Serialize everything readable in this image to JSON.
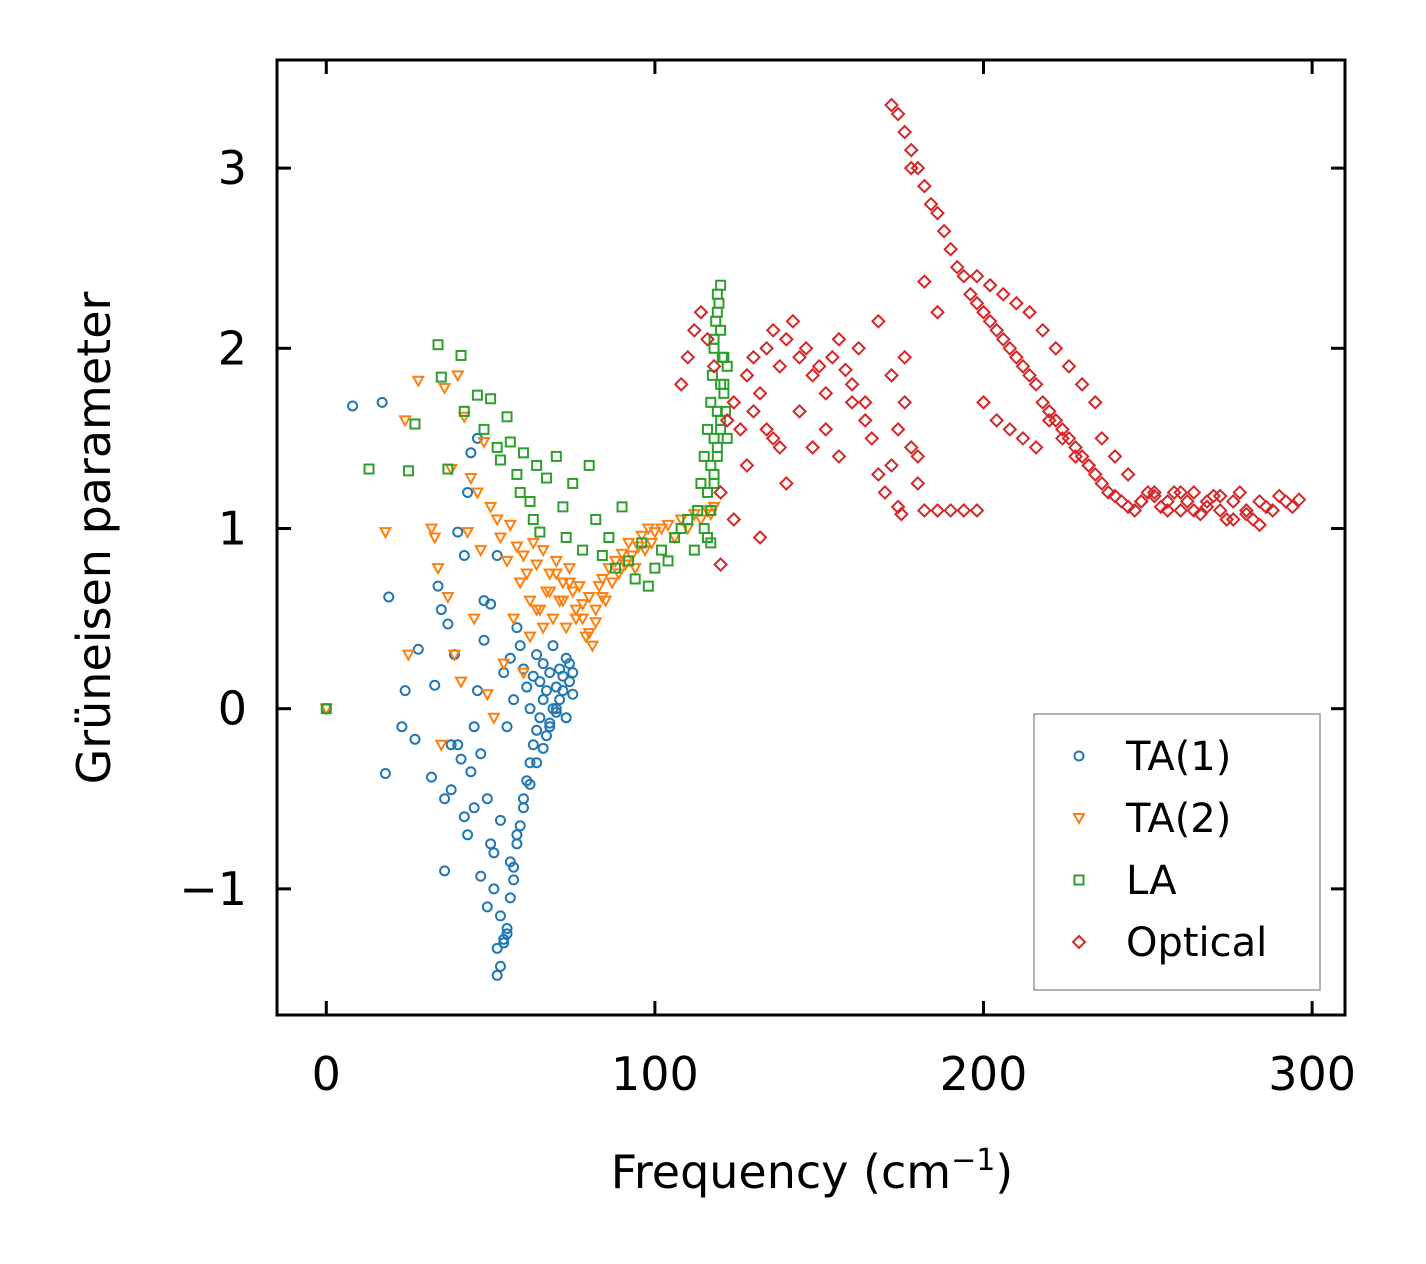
{
  "chart_data": {
    "type": "scatter",
    "title": "",
    "xlabel": "Frequency (cm",
    "xlabel_sup": "−1",
    "xlabel_close": ")",
    "ylabel": "Grüneisen parameter",
    "xlim": [
      -15,
      310
    ],
    "ylim": [
      -1.7,
      3.6
    ],
    "xticks": [
      0,
      100,
      200,
      300
    ],
    "xtick_labels": [
      "0",
      "100",
      "200",
      "300"
    ],
    "yticks": [
      -1,
      0,
      1,
      2,
      3
    ],
    "ytick_labels": [
      "−1",
      "0",
      "1",
      "2",
      "3"
    ],
    "grid": false,
    "legend_position": "bottom-right",
    "series": [
      {
        "name": "TA(1)",
        "marker": "circle",
        "color": "#1f77b4",
        "x": [
          0,
          8,
          17,
          18,
          23,
          19,
          24,
          27,
          28,
          33,
          32,
          34,
          35,
          36,
          37,
          38,
          39,
          40,
          41,
          42,
          43,
          44,
          45,
          46,
          47,
          48,
          49,
          50,
          51,
          52,
          52,
          53,
          53,
          54,
          54,
          55,
          55,
          56,
          56,
          57,
          57,
          58,
          58,
          59,
          59,
          60,
          60,
          61,
          61,
          62,
          62,
          63,
          63,
          64,
          64,
          65,
          65,
          66,
          66,
          67,
          67,
          68,
          68,
          69,
          69,
          70,
          70,
          71,
          71,
          72,
          72,
          73,
          73,
          74,
          74,
          75,
          75,
          42,
          44,
          46,
          48,
          50,
          38,
          36,
          40,
          43,
          45,
          47,
          49,
          51,
          53,
          55,
          57,
          52,
          54,
          56,
          58,
          60,
          62,
          64,
          66,
          68,
          70
        ],
        "y": [
          0,
          1.68,
          1.7,
          -0.36,
          -0.1,
          0.62,
          0.1,
          -0.17,
          0.33,
          0.13,
          -0.38,
          0.68,
          0.55,
          -0.5,
          0.47,
          -0.2,
          0.3,
          0.98,
          -0.28,
          0.85,
          1.2,
          1.42,
          -0.55,
          1.5,
          -0.93,
          0.38,
          -1.1,
          0.58,
          -1.0,
          -1.48,
          0.85,
          -1.43,
          -0.62,
          -1.3,
          0.2,
          -1.22,
          -0.1,
          -1.05,
          0.28,
          -0.88,
          0.05,
          -0.75,
          0.45,
          -0.65,
          0.35,
          -0.5,
          0.22,
          -0.4,
          0.12,
          -0.3,
          0.0,
          -0.2,
          0.18,
          -0.12,
          0.3,
          -0.05,
          0.15,
          0.05,
          0.25,
          -0.15,
          0.1,
          -0.08,
          0.2,
          0.0,
          0.35,
          0.12,
          -0.02,
          0.22,
          0.05,
          0.18,
          0.1,
          0.28,
          -0.05,
          0.15,
          0.25,
          0.08,
          0.2,
          -0.6,
          -0.35,
          0.1,
          0.6,
          -0.75,
          -0.45,
          -0.9,
          -0.2,
          -0.7,
          -0.1,
          -0.25,
          -0.5,
          -0.8,
          -1.15,
          -1.25,
          -0.95,
          -1.33,
          -1.28,
          -0.85,
          -0.7,
          -0.55,
          -0.42,
          -0.3,
          -0.22,
          -0.1,
          0.0
        ]
      },
      {
        "name": "TA(2)",
        "marker": "triangle-down",
        "color": "#ff7f0e",
        "x": [
          0,
          18,
          24,
          25,
          28,
          32,
          33,
          34,
          35,
          36,
          37,
          38,
          39,
          40,
          41,
          42,
          43,
          44,
          45,
          46,
          47,
          48,
          49,
          50,
          51,
          52,
          53,
          54,
          55,
          56,
          57,
          58,
          59,
          60,
          61,
          62,
          63,
          64,
          65,
          66,
          67,
          68,
          69,
          70,
          71,
          72,
          73,
          74,
          75,
          76,
          77,
          78,
          79,
          80,
          81,
          82,
          83,
          84,
          85,
          86,
          87,
          88,
          89,
          90,
          91,
          92,
          93,
          94,
          95,
          96,
          97,
          98,
          99,
          100,
          102,
          104,
          106,
          108,
          110,
          112,
          114,
          116,
          117,
          118,
          60,
          62,
          64,
          66,
          68,
          70,
          72,
          74,
          76,
          78,
          80,
          82,
          84
        ],
        "y": [
          0,
          0.98,
          1.6,
          0.3,
          1.82,
          1.0,
          0.95,
          0.78,
          -0.2,
          1.78,
          0.62,
          1.33,
          0.3,
          1.85,
          0.15,
          1.62,
          0.98,
          1.28,
          0.5,
          1.2,
          0.88,
          1.48,
          0.08,
          1.12,
          -0.05,
          1.05,
          0.95,
          0.25,
          0.82,
          1.02,
          0.5,
          0.9,
          0.7,
          0.85,
          0.75,
          0.6,
          0.92,
          0.8,
          0.55,
          0.88,
          0.65,
          0.75,
          0.5,
          0.82,
          0.6,
          0.7,
          0.45,
          0.78,
          0.65,
          0.55,
          0.68,
          0.5,
          0.4,
          0.62,
          0.35,
          0.55,
          0.68,
          0.72,
          0.6,
          0.78,
          0.7,
          0.82,
          0.75,
          0.86,
          0.8,
          0.92,
          0.85,
          0.78,
          0.9,
          0.96,
          0.88,
          1.0,
          0.92,
          0.98,
          1.0,
          1.02,
          0.95,
          1.05,
          1.0,
          1.08,
          1.05,
          1.1,
          1.08,
          1.12,
          0.2,
          0.4,
          0.55,
          0.45,
          0.65,
          0.75,
          0.6,
          0.7,
          0.5,
          0.58,
          0.42,
          0.48,
          0.62
        ]
      },
      {
        "name": "LA",
        "marker": "square",
        "color": "#2ca02c",
        "x": [
          0,
          13,
          25,
          27,
          34,
          35,
          37,
          41,
          42,
          46,
          48,
          50,
          52,
          53,
          55,
          56,
          58,
          59,
          60,
          62,
          63,
          64,
          65,
          67,
          70,
          72,
          73,
          75,
          78,
          80,
          82,
          84,
          86,
          88,
          90,
          92,
          94,
          96,
          98,
          100,
          102,
          104,
          106,
          108,
          110,
          112,
          113,
          114,
          115,
          116,
          117,
          117.5,
          118,
          118.5,
          119,
          119.5,
          120,
          120.5,
          121,
          121.5,
          122,
          116,
          117,
          118,
          119,
          120,
          121,
          115,
          116,
          117,
          118,
          119,
          120,
          121,
          122,
          118,
          119,
          120,
          117,
          118,
          119,
          120
        ],
        "y": [
          0,
          1.33,
          1.32,
          1.58,
          2.02,
          1.84,
          1.33,
          1.96,
          1.65,
          1.74,
          1.55,
          1.72,
          1.45,
          1.38,
          1.62,
          1.48,
          1.3,
          1.2,
          1.42,
          1.15,
          1.05,
          1.35,
          0.98,
          1.28,
          1.4,
          1.12,
          0.95,
          1.25,
          0.88,
          1.35,
          1.05,
          0.85,
          0.95,
          0.78,
          1.12,
          0.82,
          0.72,
          0.92,
          0.68,
          0.78,
          0.88,
          0.82,
          0.95,
          1.0,
          1.05,
          0.88,
          1.1,
          1.25,
          1.4,
          1.55,
          1.7,
          1.85,
          2.0,
          2.15,
          2.3,
          2.25,
          2.1,
          1.95,
          1.8,
          1.65,
          1.5,
          1.2,
          1.35,
          1.5,
          1.65,
          1.8,
          1.95,
          1.0,
          0.95,
          0.92,
          1.3,
          1.45,
          1.6,
          1.75,
          1.9,
          2.05,
          2.2,
          2.35,
          1.1,
          1.25,
          1.4,
          1.55
        ]
      },
      {
        "name": "Optical",
        "marker": "diamond",
        "color": "#d62728",
        "x": [
          108,
          110,
          112,
          114,
          116,
          118,
          120,
          122,
          124,
          126,
          128,
          130,
          132,
          134,
          136,
          138,
          140,
          142,
          144,
          146,
          148,
          150,
          152,
          154,
          156,
          158,
          160,
          162,
          164,
          166,
          168,
          170,
          172,
          174,
          176,
          178,
          180,
          182,
          186,
          190,
          194,
          198,
          120,
          124,
          128,
          132,
          136,
          140,
          144,
          148,
          152,
          156,
          160,
          164,
          168,
          172,
          176,
          180,
          172,
          174,
          176,
          178,
          180,
          182,
          184,
          186,
          188,
          190,
          192,
          194,
          196,
          198,
          200,
          202,
          204,
          206,
          208,
          210,
          212,
          214,
          216,
          218,
          220,
          222,
          224,
          226,
          228,
          230,
          232,
          234,
          236,
          238,
          240,
          242,
          244,
          246,
          248,
          250,
          252,
          254,
          256,
          258,
          260,
          262,
          264,
          266,
          268,
          270,
          272,
          274,
          276,
          278,
          280,
          282,
          284,
          286,
          288,
          290,
          292,
          294,
          296,
          198,
          202,
          206,
          210,
          214,
          218,
          222,
          226,
          230,
          234,
          200,
          204,
          208,
          212,
          216,
          220,
          224,
          228,
          232,
          236,
          240,
          244,
          248,
          252,
          256,
          260,
          264,
          268,
          272,
          276,
          280,
          284,
          182,
          186,
          178,
          174,
          175,
          130,
          134,
          138
        ],
        "y": [
          1.8,
          1.95,
          2.1,
          2.2,
          2.05,
          1.9,
          0.8,
          1.6,
          1.7,
          1.55,
          1.85,
          1.95,
          1.75,
          2.0,
          2.1,
          1.9,
          2.05,
          2.15,
          1.95,
          2.0,
          1.85,
          1.9,
          1.75,
          1.95,
          2.05,
          1.88,
          1.8,
          2.0,
          1.7,
          1.5,
          1.3,
          1.2,
          1.35,
          1.55,
          1.7,
          1.45,
          1.25,
          1.1,
          1.1,
          1.1,
          1.1,
          1.1,
          1.2,
          1.05,
          1.35,
          0.95,
          1.5,
          1.25,
          1.65,
          1.45,
          1.55,
          1.4,
          1.7,
          1.6,
          2.15,
          1.85,
          1.95,
          1.4,
          3.35,
          3.3,
          3.2,
          3.1,
          3.0,
          2.9,
          2.8,
          2.75,
          2.65,
          2.55,
          2.45,
          2.4,
          2.3,
          2.25,
          2.2,
          2.15,
          2.1,
          2.05,
          2.0,
          1.95,
          1.9,
          1.85,
          1.8,
          1.7,
          1.65,
          1.6,
          1.55,
          1.5,
          1.45,
          1.4,
          1.35,
          1.3,
          1.25,
          1.2,
          1.18,
          1.15,
          1.12,
          1.1,
          1.15,
          1.2,
          1.18,
          1.12,
          1.15,
          1.2,
          1.1,
          1.15,
          1.2,
          1.08,
          1.12,
          1.18,
          1.1,
          1.05,
          1.15,
          1.2,
          1.08,
          1.05,
          1.15,
          1.12,
          1.1,
          1.18,
          1.15,
          1.12,
          1.16,
          2.4,
          2.35,
          2.3,
          2.25,
          2.2,
          2.1,
          2.0,
          1.9,
          1.8,
          1.7,
          1.7,
          1.6,
          1.55,
          1.5,
          1.45,
          1.6,
          1.5,
          1.4,
          1.35,
          1.5,
          1.4,
          1.3,
          1.15,
          1.2,
          1.1,
          1.2,
          1.1,
          1.15,
          1.18,
          1.05,
          1.1,
          1.02,
          2.37,
          2.2,
          3.0,
          1.12,
          1.08,
          1.65,
          1.55,
          1.45
        ]
      }
    ]
  }
}
